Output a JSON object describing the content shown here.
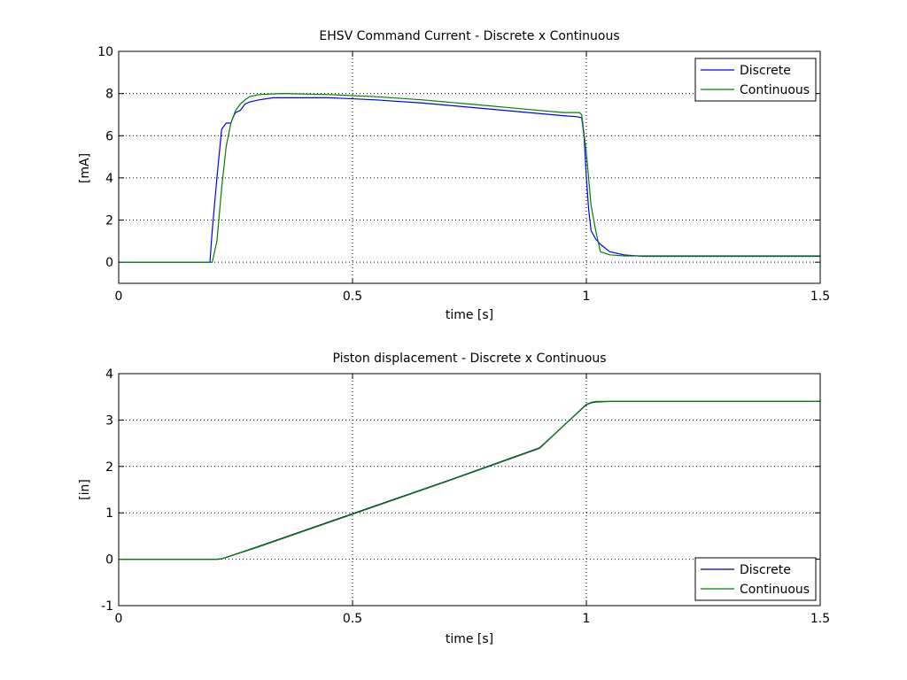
{
  "chart_data": [
    {
      "type": "line",
      "title": "EHSV Command Current - Discrete x Continuous",
      "xlabel": "time [s]",
      "ylabel": "[mA]",
      "xlim": [
        0,
        1.5
      ],
      "ylim": [
        -1,
        10
      ],
      "xticks": [
        "0",
        "0.5",
        "1",
        "1.5"
      ],
      "yticks": [
        "0",
        "2",
        "4",
        "6",
        "8",
        "10"
      ],
      "grid": true,
      "legend": "top-right",
      "colors": {
        "Discrete": "#0000ff",
        "Continuous": "#008000"
      },
      "series": [
        {
          "name": "Discrete",
          "x": [
            0,
            0.195,
            0.2,
            0.21,
            0.22,
            0.23,
            0.24,
            0.245,
            0.25,
            0.26,
            0.27,
            0.28,
            0.3,
            0.33,
            0.38,
            0.45,
            0.55,
            0.65,
            0.75,
            0.85,
            0.95,
            0.98,
            0.99,
            0.995,
            1.0,
            1.005,
            1.01,
            1.02,
            1.03,
            1.05,
            1.08,
            1.12,
            1.2,
            1.3,
            1.4,
            1.5
          ],
          "y": [
            0.0,
            0.0,
            1.5,
            4.0,
            6.3,
            6.6,
            6.6,
            6.9,
            7.1,
            7.2,
            7.5,
            7.6,
            7.7,
            7.8,
            7.8,
            7.8,
            7.7,
            7.55,
            7.35,
            7.15,
            6.95,
            6.9,
            6.85,
            6.0,
            4.0,
            2.5,
            1.5,
            1.1,
            0.85,
            0.5,
            0.35,
            0.28,
            0.28,
            0.28,
            0.28,
            0.28
          ]
        },
        {
          "name": "Continuous",
          "x": [
            0,
            0.2,
            0.21,
            0.22,
            0.23,
            0.24,
            0.25,
            0.26,
            0.27,
            0.28,
            0.3,
            0.35,
            0.45,
            0.55,
            0.65,
            0.75,
            0.85,
            0.95,
            0.985,
            0.99,
            1.0,
            1.01,
            1.02,
            1.03,
            1.05,
            1.08,
            1.2,
            1.3,
            1.4,
            1.5
          ],
          "y": [
            0.0,
            0.0,
            1.0,
            3.5,
            5.5,
            6.6,
            7.2,
            7.5,
            7.7,
            7.85,
            7.95,
            8.0,
            7.95,
            7.85,
            7.7,
            7.5,
            7.3,
            7.1,
            7.1,
            7.0,
            5.2,
            2.7,
            1.5,
            0.5,
            0.35,
            0.3,
            0.3,
            0.3,
            0.3,
            0.3
          ]
        }
      ]
    },
    {
      "type": "line",
      "title": "Piston displacement - Discrete x Continuous",
      "xlabel": "time [s]",
      "ylabel": "[in]",
      "xlim": [
        0,
        1.5
      ],
      "ylim": [
        -1,
        4
      ],
      "xticks": [
        "0",
        "0.5",
        "1",
        "1.5"
      ],
      "yticks": [
        "-1",
        "0",
        "1",
        "2",
        "3",
        "4"
      ],
      "grid": true,
      "legend": "bottom-right",
      "colors": {
        "Discrete": "#000080",
        "Continuous": "#008000"
      },
      "series": [
        {
          "name": "Discrete",
          "x": [
            0,
            0.21,
            0.22,
            0.23,
            0.3,
            0.5,
            0.7,
            0.9,
            1.0,
            1.01,
            1.02,
            1.05,
            1.2,
            1.5
          ],
          "y": [
            0.0,
            0.0,
            0.01,
            0.04,
            0.28,
            0.98,
            1.68,
            2.4,
            3.33,
            3.37,
            3.39,
            3.4,
            3.4,
            3.4
          ]
        },
        {
          "name": "Continuous",
          "x": [
            0,
            0.21,
            0.22,
            0.23,
            0.3,
            0.5,
            0.7,
            0.9,
            1.0,
            1.01,
            1.02,
            1.05,
            1.2,
            1.5
          ],
          "y": [
            0.0,
            0.0,
            0.01,
            0.04,
            0.27,
            0.97,
            1.67,
            2.39,
            3.34,
            3.38,
            3.4,
            3.4,
            3.4,
            3.4
          ]
        }
      ]
    }
  ]
}
